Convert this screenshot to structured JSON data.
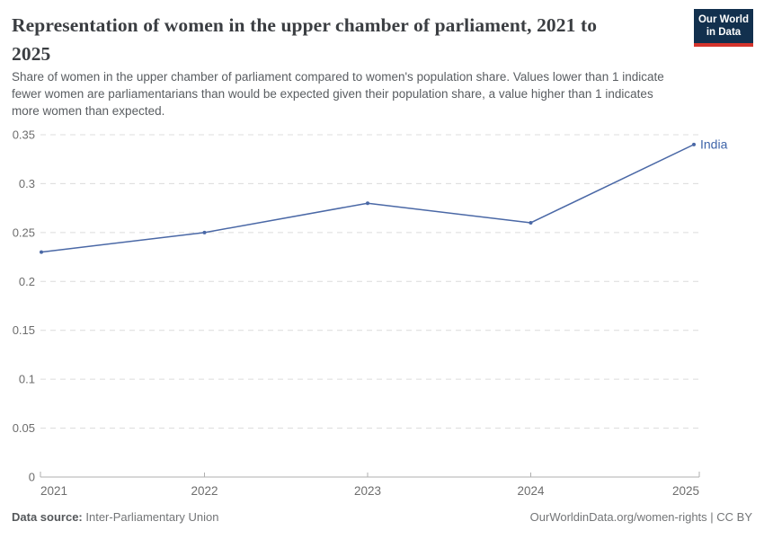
{
  "header": {
    "title_lines": [
      "Representation of women in the upper chamber of parliament, 2021 to",
      "2025"
    ],
    "subtitle_lines": [
      "Share of women in the upper chamber of parliament compared to women's population share. Values lower than 1 indicate",
      "fewer women are parliamentarians than would be expected given their population share, a value higher than 1 indicates",
      "more women than expected."
    ],
    "logo": {
      "line1": "Our World",
      "line2": "in Data"
    }
  },
  "footer": {
    "datasource_label": "Data source:",
    "datasource_value": " Inter-Parliamentary Union",
    "credit": "OurWorldinData.org/women-rights | CC BY"
  },
  "colors": {
    "line": "#4a68a6",
    "entity_label": "#3e64a9",
    "grid": "#dcdcdc",
    "axis": "#afafaf",
    "tick_label": "#6d6d6d",
    "title": "#3b3e42",
    "subtitle": "#595d61",
    "logo_bg": "#12304e",
    "logo_red": "#d4342c"
  },
  "chart_data": {
    "type": "line",
    "title": "Representation of women in the upper chamber of parliament, 2021 to 2025",
    "x": [
      2021,
      2022,
      2023,
      2024,
      2025
    ],
    "xtick_labels": [
      "2021",
      "2022",
      "2023",
      "2024",
      "2025"
    ],
    "series": [
      {
        "name": "India",
        "values": [
          0.23,
          0.25,
          0.28,
          0.26,
          0.34
        ]
      }
    ],
    "ylim": [
      0,
      0.35
    ],
    "yticks": [
      0,
      0.05,
      0.1,
      0.15,
      0.2,
      0.25,
      0.3,
      0.35
    ],
    "ytick_labels": [
      "0",
      "0.05",
      "0.1",
      "0.15",
      "0.2",
      "0.25",
      "0.3",
      "0.35"
    ],
    "grid": "horizontal-dashed",
    "legend": "end-of-line-label"
  }
}
